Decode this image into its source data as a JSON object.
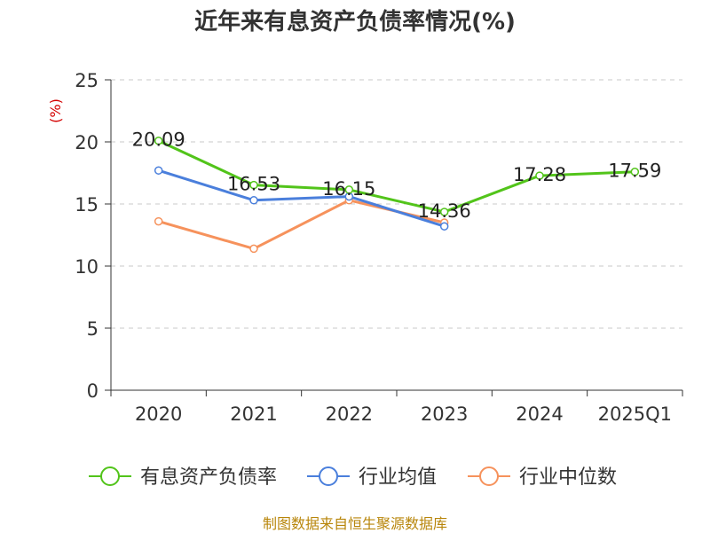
{
  "title": "近年来有息资产负债率情况(%)",
  "source": "制图数据来自恒生聚源数据库",
  "chart_data": {
    "type": "line",
    "title": "近年来有息资产负债率情况(%)",
    "ylabel": "(%)",
    "xlabel": "",
    "categories": [
      "2020",
      "2021",
      "2022",
      "2023",
      "2024",
      "2025Q1"
    ],
    "ylim": [
      0,
      25
    ],
    "yticks": [
      0,
      5,
      10,
      15,
      20,
      25
    ],
    "grid": true,
    "legend_position": "bottom",
    "series": [
      {
        "name": "有息资产负债率",
        "color": "#52c41a",
        "values": [
          20.09,
          16.53,
          16.15,
          14.36,
          17.28,
          17.59
        ],
        "labels": [
          "20.09",
          "16.53",
          "16.15",
          "14.36",
          "17.28",
          "17.59"
        ]
      },
      {
        "name": "行业均值",
        "color": "#4a7fdc",
        "values": [
          17.7,
          15.3,
          15.6,
          13.2,
          null,
          null
        ]
      },
      {
        "name": "行业中位数",
        "color": "#f6925c",
        "values": [
          13.6,
          11.4,
          15.3,
          13.5,
          null,
          null
        ]
      }
    ]
  }
}
